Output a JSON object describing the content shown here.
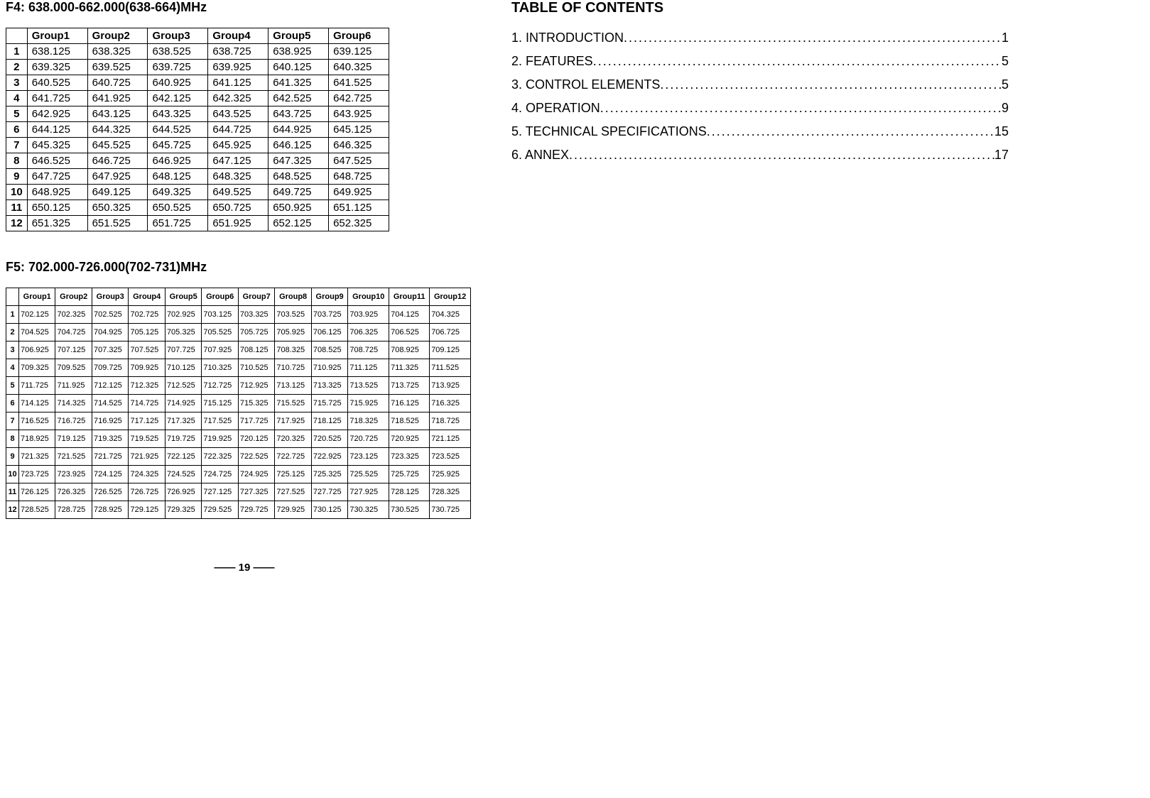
{
  "f4": {
    "title": "F4: 638.000-662.000(638-664)MHz",
    "headers": [
      "",
      "Group1",
      "Group2",
      "Group3",
      "Group4",
      "Group5",
      "Group6"
    ],
    "rows": [
      [
        "1",
        "638.125",
        "638.325",
        "638.525",
        "638.725",
        "638.925",
        "639.125"
      ],
      [
        "2",
        "639.325",
        "639.525",
        "639.725",
        "639.925",
        "640.125",
        "640.325"
      ],
      [
        "3",
        "640.525",
        "640.725",
        "640.925",
        "641.125",
        "641.325",
        "641.525"
      ],
      [
        "4",
        "641.725",
        "641.925",
        "642.125",
        "642.325",
        "642.525",
        "642.725"
      ],
      [
        "5",
        "642.925",
        "643.125",
        "643.325",
        "643.525",
        "643.725",
        "643.925"
      ],
      [
        "6",
        "644.125",
        "644.325",
        "644.525",
        "644.725",
        "644.925",
        "645.125"
      ],
      [
        "7",
        "645.325",
        "645.525",
        "645.725",
        "645.925",
        "646.125",
        "646.325"
      ],
      [
        "8",
        "646.525",
        "646.725",
        "646.925",
        "647.125",
        "647.325",
        "647.525"
      ],
      [
        "9",
        "647.725",
        "647.925",
        "648.125",
        "648.325",
        "648.525",
        "648.725"
      ],
      [
        "10",
        "648.925",
        "649.125",
        "649.325",
        "649.525",
        "649.725",
        "649.925"
      ],
      [
        "11",
        "650.125",
        "650.325",
        "650.525",
        "650.725",
        "650.925",
        "651.125"
      ],
      [
        "12",
        "651.325",
        "651.525",
        "651.725",
        "651.925",
        "652.125",
        "652.325"
      ]
    ]
  },
  "f5": {
    "title": "F5: 702.000-726.000(702-731)MHz",
    "headers": [
      "",
      "Group1",
      "Group2",
      "Group3",
      "Group4",
      "Group5",
      "Group6",
      "Group7",
      "Group8",
      "Group9",
      "Group10",
      "Group11",
      "Group12"
    ],
    "rows": [
      [
        "1",
        "702.125",
        "702.325",
        "702.525",
        "702.725",
        "702.925",
        "703.125",
        "703.325",
        "703.525",
        "703.725",
        "703.925",
        "704.125",
        "704.325"
      ],
      [
        "2",
        "704.525",
        "704.725",
        "704.925",
        "705.125",
        "705.325",
        "705.525",
        "705.725",
        "705.925",
        "706.125",
        "706.325",
        "706.525",
        "706.725"
      ],
      [
        "3",
        "706.925",
        "707.125",
        "707.325",
        "707.525",
        "707.725",
        "707.925",
        "708.125",
        "708.325",
        "708.525",
        "708.725",
        "708.925",
        "709.125"
      ],
      [
        "4",
        "709.325",
        "709.525",
        "709.725",
        "709.925",
        "710.125",
        "710.325",
        "710.525",
        "710.725",
        "710.925",
        "711.125",
        "711.325",
        "711.525"
      ],
      [
        "5",
        "711.725",
        "711.925",
        "712.125",
        "712.325",
        "712.525",
        "712.725",
        "712.925",
        "713.125",
        "713.325",
        "713.525",
        "713.725",
        "713.925"
      ],
      [
        "6",
        "714.125",
        "714.325",
        "714.525",
        "714.725",
        "714.925",
        "715.125",
        "715.325",
        "715.525",
        "715.725",
        "715.925",
        "716.125",
        "716.325"
      ],
      [
        "7",
        "716.525",
        "716.725",
        "716.925",
        "717.125",
        "717.325",
        "717.525",
        "717.725",
        "717.925",
        "718.125",
        "718.325",
        "718.525",
        "718.725"
      ],
      [
        "8",
        "718.925",
        "719.125",
        "719.325",
        "719.525",
        "719.725",
        "719.925",
        "720.125",
        "720.325",
        "720.525",
        "720.725",
        "720.925",
        "721.125"
      ],
      [
        "9",
        "721.325",
        "721.525",
        "721.725",
        "721.925",
        "722.125",
        "722.325",
        "722.525",
        "722.725",
        "722.925",
        "723.125",
        "723.325",
        "723.525"
      ],
      [
        "10",
        "723.725",
        "723.925",
        "724.125",
        "724.325",
        "724.525",
        "724.725",
        "724.925",
        "725.125",
        "725.325",
        "725.525",
        "725.725",
        "725.925"
      ],
      [
        "11",
        "726.125",
        "726.325",
        "726.525",
        "726.725",
        "726.925",
        "727.125",
        "727.325",
        "727.525",
        "727.725",
        "727.925",
        "728.125",
        "728.325"
      ],
      [
        "12",
        "728.525",
        "728.725",
        "728.925",
        "729.125",
        "729.325",
        "729.525",
        "729.725",
        "729.925",
        "730.125",
        "730.325",
        "730.525",
        "730.725"
      ]
    ]
  },
  "pageNumber": "—— 19 ——",
  "toc": {
    "title": "TABLE OF CONTENTS",
    "items": [
      {
        "label": "1. INTRODUCTION",
        "page": "1"
      },
      {
        "label": "2. FEATURES",
        "page": "5"
      },
      {
        "label": "3. CONTROL ELEMENTS",
        "page": "5"
      },
      {
        "label": "4. OPERATION",
        "page": "9"
      },
      {
        "label": "5. TECHNICAL SPECIFICATIONS",
        "page": "15"
      },
      {
        "label": "6. ANNEX",
        "page": "17"
      }
    ]
  },
  "style": {
    "font_family": "Arial",
    "text_color": "#000000",
    "background_color": "#ffffff",
    "border_color": "#000000",
    "f4_fontsize": 15,
    "f5_fontsize": 11,
    "title_fontsize": 18,
    "toc_title_fontsize": 20,
    "toc_item_fontsize": 18
  }
}
